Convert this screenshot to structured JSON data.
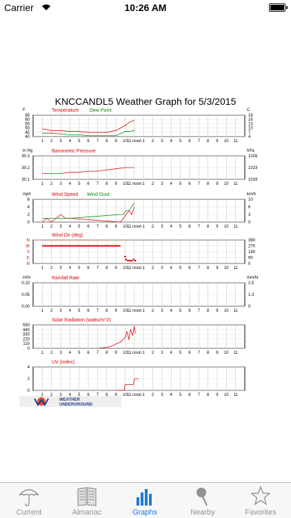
{
  "status_bar": {
    "carrier": "Carrier",
    "time": "10:26 AM"
  },
  "graph": {
    "title": "KNCCANDL5 Weather Graph for 5/3/2015",
    "x_ticks": [
      "1",
      "2",
      "3",
      "4",
      "5",
      "6",
      "7",
      "8",
      "9",
      "10",
      "11 noon",
      "1",
      "2",
      "3",
      "4",
      "5",
      "6",
      "7",
      "8",
      "9",
      "10",
      "11"
    ],
    "panels": [
      {
        "id": "temperature",
        "unit_left": "F",
        "unit_right": "C",
        "series_labels": [
          {
            "name": "Temperature",
            "color": "#dd0000"
          },
          {
            "name": "Dew Point",
            "color": "#008800"
          }
        ],
        "y_left": [
          "65",
          "60",
          "55",
          "50",
          "45",
          "40"
        ],
        "y_right": [
          "18",
          "16",
          "13",
          "10",
          "7",
          "4"
        ]
      },
      {
        "id": "pressure",
        "unit_left": "in Hg",
        "unit_right": "hPa",
        "series_labels": [
          {
            "name": "Barometric Pressure",
            "color": "#dd0000"
          }
        ],
        "y_left": [
          "30.3",
          "30.2",
          "30.1"
        ],
        "y_right": [
          "1026",
          "1023",
          "1019"
        ]
      },
      {
        "id": "wind",
        "unit_left": "mph",
        "unit_right": "km/h",
        "series_labels": [
          {
            "name": "Wind Speed",
            "color": "#dd0000"
          },
          {
            "name": "Wind Gust",
            "color": "#008800"
          }
        ],
        "y_left": [
          "6",
          "4",
          "2",
          "0"
        ],
        "y_right": [
          "10",
          "6",
          "3",
          "0"
        ]
      },
      {
        "id": "wind_dir",
        "unit_left": "",
        "unit_right": "",
        "series_labels": [
          {
            "name": "Wind Dir (deg)",
            "color": "#dd0000"
          }
        ],
        "y_left": [
          "N",
          "W",
          "S",
          "E",
          "N"
        ],
        "y_right": [
          "360",
          "270",
          "180",
          "90",
          "0"
        ]
      },
      {
        "id": "rainfall",
        "unit_left": "in/hr",
        "unit_right": "mm/hr",
        "series_labels": [
          {
            "name": "Rainfall Rate",
            "color": "#dd0000"
          }
        ],
        "y_left": [
          "0.10",
          "0.05",
          "0.00"
        ],
        "y_right": [
          "2.5",
          "1.3",
          "0"
        ]
      },
      {
        "id": "solar",
        "unit_left": "",
        "unit_right": "",
        "series_labels": [
          {
            "name": "Solar Radiation (watts/m^2)",
            "color": "#dd0000"
          }
        ],
        "y_left": [
          "550",
          "440",
          "330",
          "220",
          "110",
          "0"
        ],
        "y_right": []
      },
      {
        "id": "uv",
        "unit_left": "",
        "unit_right": "",
        "series_labels": [
          {
            "name": "UV (index)",
            "color": "#dd0000"
          }
        ],
        "y_left": [
          "4",
          "2",
          "0"
        ],
        "y_right": []
      }
    ],
    "logo": {
      "line1": "WEATHER",
      "line2": "UNDERGROUND"
    }
  },
  "chart_data": [
    {
      "type": "line",
      "title": "Temperature / Dew Point",
      "ylim": [
        40,
        65
      ],
      "x": [
        0,
        1,
        2,
        3,
        4,
        5,
        6,
        7,
        8,
        9,
        9.5,
        10
      ],
      "series": [
        {
          "name": "Temperature",
          "values": [
            49,
            47,
            47,
            46,
            46,
            45,
            45,
            45,
            47,
            53,
            57,
            59
          ]
        },
        {
          "name": "Dew Point",
          "values": [
            44,
            44,
            43,
            42,
            42,
            41,
            41,
            41,
            41,
            46,
            46,
            47
          ]
        }
      ]
    },
    {
      "type": "line",
      "title": "Barometric Pressure",
      "ylim": [
        30.1,
        30.3
      ],
      "x": [
        0,
        1,
        2,
        3,
        4,
        5,
        6,
        7,
        8,
        9,
        10
      ],
      "series": [
        {
          "name": "Barometric Pressure",
          "values": [
            30.15,
            30.15,
            30.15,
            30.16,
            30.16,
            30.17,
            30.17,
            30.18,
            30.19,
            30.2,
            30.2
          ]
        }
      ]
    },
    {
      "type": "line",
      "title": "Wind Speed / Wind Gust",
      "ylim": [
        0,
        6
      ],
      "x": [
        0,
        0.5,
        1,
        1.5,
        2,
        2.5,
        3,
        8.5,
        8.8,
        9.1,
        9.4,
        9.7,
        10
      ],
      "series": [
        {
          "name": "Wind Speed",
          "values": [
            0,
            1,
            0,
            1,
            2,
            1,
            1,
            0,
            1,
            2,
            3,
            2,
            4
          ]
        },
        {
          "name": "Wind Gust",
          "values": [
            1,
            1,
            1,
            1,
            1,
            1,
            1,
            2,
            2,
            3,
            3,
            4,
            5
          ]
        }
      ]
    },
    {
      "type": "scatter",
      "title": "Wind Dir (deg)",
      "ylim": [
        0,
        360
      ],
      "x": [
        0,
        2,
        4,
        6,
        8,
        8.5,
        9,
        9.1,
        9.3,
        9.5,
        9.7,
        9.9,
        10.1
      ],
      "series": [
        {
          "name": "Wind Dir",
          "values": [
            270,
            270,
            270,
            270,
            270,
            270,
            105,
            60,
            45,
            45,
            40,
            60,
            45
          ]
        }
      ]
    },
    {
      "type": "line",
      "title": "Rainfall Rate",
      "ylim": [
        0,
        0.1
      ],
      "x": [],
      "series": [
        {
          "name": "Rainfall Rate",
          "values": []
        }
      ]
    },
    {
      "type": "line",
      "title": "Solar Radiation (watts/m^2)",
      "ylim": [
        0,
        550
      ],
      "x": [
        6,
        7,
        7.5,
        8,
        8.5,
        9,
        9.2,
        9.4,
        9.6,
        9.8,
        10,
        10.1
      ],
      "series": [
        {
          "name": "Solar Radiation",
          "values": [
            0,
            20,
            50,
            100,
            150,
            250,
            400,
            200,
            450,
            300,
            520,
            350
          ]
        }
      ]
    },
    {
      "type": "line",
      "title": "UV (index)",
      "ylim": [
        0,
        4
      ],
      "x": [
        8,
        8.9,
        9,
        9.9,
        10,
        10.5
      ],
      "series": [
        {
          "name": "UV",
          "values": [
            0,
            0,
            1,
            1,
            2,
            2
          ]
        }
      ]
    }
  ],
  "tabs": [
    {
      "label": "Current",
      "icon": "umbrella-icon",
      "active": false
    },
    {
      "label": "Almanac",
      "icon": "book-icon",
      "active": false
    },
    {
      "label": "Graphs",
      "icon": "graph-bars-icon",
      "active": true
    },
    {
      "label": "Nearby",
      "icon": "pin-icon",
      "active": false
    },
    {
      "label": "Favorites",
      "icon": "star-icon",
      "active": false
    }
  ],
  "colors": {
    "active": "#1e7ad9",
    "inactive": "#929292",
    "temp": "#dd0000",
    "dew": "#008800"
  }
}
